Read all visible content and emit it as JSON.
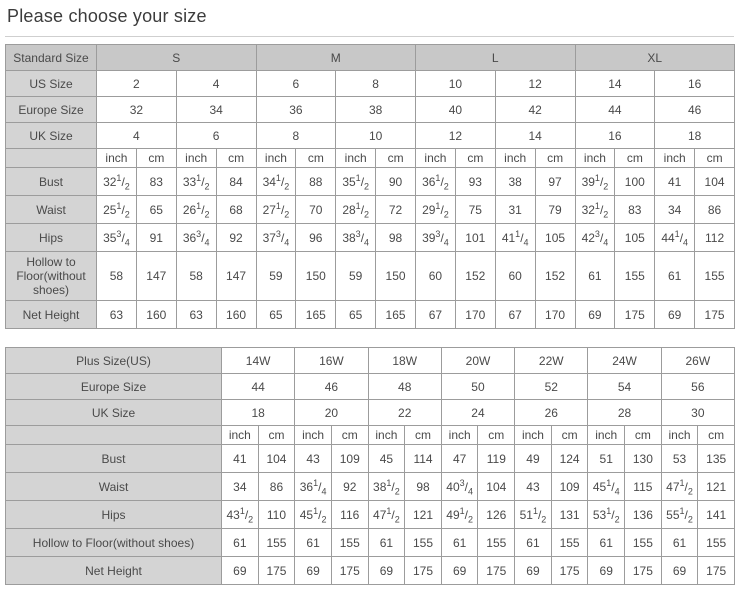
{
  "page": {
    "title": "Please choose your size"
  },
  "colors": {
    "group_header_bg": "#c8c8c8",
    "label_bg": "#d4d4d4",
    "cell_bg": "#ffffff",
    "border": "#9c9c9c",
    "text": "#4a4a4a",
    "title_text": "#3c3c3c",
    "divider": "#cfcfcf"
  },
  "tables": {
    "standard": {
      "name": "standard-size-chart",
      "group_row": {
        "label": "Standard Size",
        "items": [
          "S",
          "M",
          "L",
          "XL"
        ],
        "span": 4
      },
      "size_rows": [
        {
          "label": "US Size",
          "values": [
            "2",
            "4",
            "6",
            "8",
            "10",
            "12",
            "14",
            "16"
          ]
        },
        {
          "label": "Europe Size",
          "values": [
            "32",
            "34",
            "36",
            "38",
            "40",
            "42",
            "44",
            "46"
          ]
        },
        {
          "label": "UK Size",
          "values": [
            "4",
            "6",
            "8",
            "10",
            "12",
            "14",
            "16",
            "18"
          ]
        }
      ],
      "units": [
        "inch",
        "cm"
      ],
      "pairs": 8,
      "measure_rows": [
        {
          "label": "Bust",
          "values": [
            "32[1/2]",
            "83",
            "33[1/2]",
            "84",
            "34[1/2]",
            "88",
            "35[1/2]",
            "90",
            "36[1/2]",
            "93",
            "38",
            "97",
            "39[1/2]",
            "100",
            "41",
            "104"
          ]
        },
        {
          "label": "Waist",
          "values": [
            "25[1/2]",
            "65",
            "26[1/2]",
            "68",
            "27[1/2]",
            "70",
            "28[1/2]",
            "72",
            "29[1/2]",
            "75",
            "31",
            "79",
            "32[1/2]",
            "83",
            "34",
            "86"
          ]
        },
        {
          "label": "Hips",
          "values": [
            "35[3/4]",
            "91",
            "36[3/4]",
            "92",
            "37[3/4]",
            "96",
            "38[3/4]",
            "98",
            "39[3/4]",
            "101",
            "41[1/4]",
            "105",
            "42[3/4]",
            "105",
            "44[1/4]",
            "112"
          ]
        },
        {
          "label": "Hollow to Floor(without shoes)",
          "values": [
            "58",
            "147",
            "58",
            "147",
            "59",
            "150",
            "59",
            "150",
            "60",
            "152",
            "60",
            "152",
            "61",
            "155",
            "61",
            "155"
          ]
        },
        {
          "label": "Net Height",
          "values": [
            "63",
            "160",
            "63",
            "160",
            "65",
            "165",
            "65",
            "165",
            "67",
            "170",
            "67",
            "170",
            "69",
            "175",
            "69",
            "175"
          ]
        }
      ]
    },
    "plus": {
      "name": "plus-size-chart",
      "size_rows": [
        {
          "label": "Plus Size(US)",
          "values": [
            "14W",
            "16W",
            "18W",
            "20W",
            "22W",
            "24W",
            "26W"
          ]
        },
        {
          "label": "Europe Size",
          "values": [
            "44",
            "46",
            "48",
            "50",
            "52",
            "54",
            "56"
          ]
        },
        {
          "label": "UK Size",
          "values": [
            "18",
            "20",
            "22",
            "24",
            "26",
            "28",
            "30"
          ]
        }
      ],
      "units": [
        "inch",
        "cm"
      ],
      "pairs": 7,
      "measure_rows": [
        {
          "label": "Bust",
          "values": [
            "41",
            "104",
            "43",
            "109",
            "45",
            "114",
            "47",
            "119",
            "49",
            "124",
            "51",
            "130",
            "53",
            "135"
          ]
        },
        {
          "label": "Waist",
          "values": [
            "34",
            "86",
            "36[1/4]",
            "92",
            "38[1/2]",
            "98",
            "40[3/4]",
            "104",
            "43",
            "109",
            "45[1/4]",
            "115",
            "47[1/2]",
            "121"
          ]
        },
        {
          "label": "Hips",
          "values": [
            "43[1/2]",
            "110",
            "45[1/2]",
            "116",
            "47[1/2]",
            "121",
            "49[1/2]",
            "126",
            "51[1/2]",
            "131",
            "53[1/2]",
            "136",
            "55[1/2]",
            "141"
          ]
        },
        {
          "label": "Hollow to Floor(without shoes)",
          "values": [
            "61",
            "155",
            "61",
            "155",
            "61",
            "155",
            "61",
            "155",
            "61",
            "155",
            "61",
            "155",
            "61",
            "155"
          ]
        },
        {
          "label": "Net Height",
          "values": [
            "69",
            "175",
            "69",
            "175",
            "69",
            "175",
            "69",
            "175",
            "69",
            "175",
            "69",
            "175",
            "69",
            "175"
          ]
        }
      ]
    }
  }
}
